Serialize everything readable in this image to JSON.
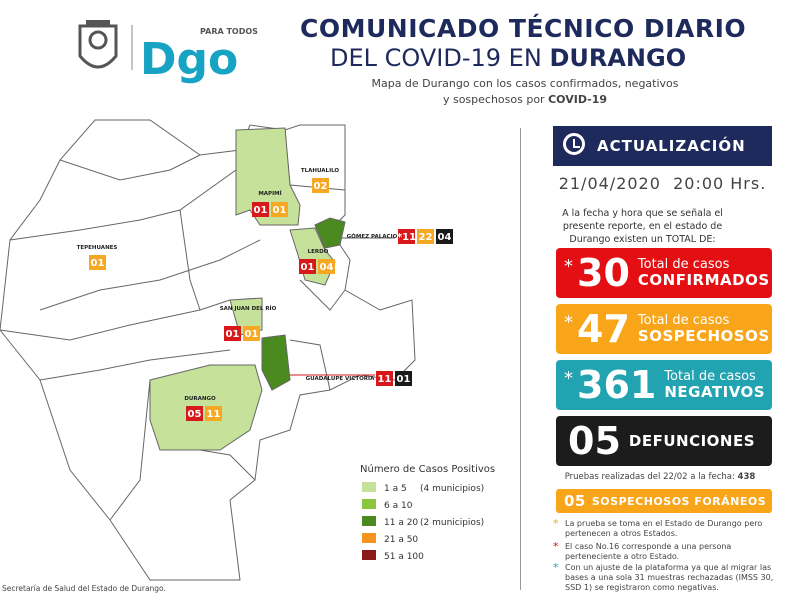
{
  "header": {
    "logo_tagline": "PARA TODOS",
    "logo_text": "Dgo",
    "title_line1": "COMUNICADO TÉCNICO DIARIO",
    "title_line2_prefix": "DEL COVID-19 EN",
    "title_line2_bold": "DURANGO",
    "subtitle_line1": "Mapa de Durango con los casos confirmados, negativos",
    "subtitle_line2_prefix": "y sospechosos por",
    "subtitle_line2_bold": "COVID-19"
  },
  "map": {
    "badge_colors": {
      "confirmados": "#d7191c",
      "sospechosos": "#f7a823",
      "defunciones": "#1a1a1a",
      "marker": "#d7191c"
    },
    "municipalities": [
      {
        "name": "MAPIMÍ",
        "badges": [
          {
            "text": "01",
            "kind": "confirmados"
          },
          {
            "text": "01",
            "kind": "sospechosos"
          }
        ]
      },
      {
        "name": "TLAHUALILO",
        "badges": [
          {
            "text": "02",
            "kind": "sospechosos"
          }
        ]
      },
      {
        "name": "TEPEHUANES",
        "badges": [
          {
            "text": "01",
            "kind": "sospechosos"
          }
        ]
      },
      {
        "name": "LERDO",
        "badges": [
          {
            "text": "01",
            "kind": "confirmados"
          },
          {
            "text": "04",
            "kind": "sospechosos"
          }
        ]
      },
      {
        "name": "GÓMEZ PALACIO",
        "badges": [
          {
            "text": "*11",
            "kind": "marker"
          },
          {
            "text": "22",
            "kind": "sospechosos"
          },
          {
            "text": "04",
            "kind": "defunciones"
          }
        ]
      },
      {
        "name": "SAN JUAN DEL RÍO",
        "badges": [
          {
            "text": "01",
            "kind": "confirmados"
          },
          {
            "text": "01",
            "kind": "sospechosos"
          }
        ]
      },
      {
        "name": "DURANGO",
        "badges": [
          {
            "text": "05",
            "kind": "confirmados"
          },
          {
            "text": "11",
            "kind": "sospechosos"
          }
        ]
      },
      {
        "name": "GUADALUPE VICTORIA",
        "badges": [
          {
            "text": "11",
            "kind": "confirmados"
          },
          {
            "text": "01",
            "kind": "defunciones"
          }
        ]
      }
    ],
    "legend": {
      "title": "Número de Casos Positivos",
      "items": [
        {
          "range": "1 a 5",
          "note": "(4 municipios)",
          "color": "#c6e29a"
        },
        {
          "range": "6 a 10",
          "color": "#8cc63f"
        },
        {
          "range": "11 a 20",
          "note": "(2 municipios)",
          "color": "#4b8a1e"
        },
        {
          "range": "21 a 50",
          "color": "#f7941d"
        },
        {
          "range": "51 a 100",
          "color": "#8b1a1a"
        }
      ]
    }
  },
  "panel": {
    "update_label": "ACTUALIZACIÓN",
    "date": "21/04/2020",
    "time": "20:00 Hrs.",
    "intro": "A la fecha y hora que se señala el presente reporte, en el estado de Durango existen un TOTAL DE:",
    "cards": [
      {
        "marker": "*",
        "number": "30",
        "line1": "Total de casos",
        "line2": "CONFIRMADOS",
        "color": "#e30f13"
      },
      {
        "marker": "*",
        "number": "47",
        "line1": "Total de casos",
        "line2": "SOSPECHOSOS",
        "color": "#f9a51a"
      },
      {
        "marker": "*",
        "number": "361",
        "line1": "Total de casos",
        "line2": "NEGATIVOS",
        "color": "#22a3b1"
      },
      {
        "number": "05",
        "line2": "DEFUNCIONES",
        "color": "#1c1c1c"
      }
    ],
    "tests_label": "Pruebas realizadas del 22/02 a la fecha:",
    "tests_value": "438",
    "foreign_number": "05",
    "foreign_label": "SOSPECHOSOS FORÁNEOS",
    "notes": [
      {
        "marker": "*",
        "color": "#f9a51a",
        "text": "La prueba se toma en el Estado de Durango pero pertenecen a otros Estados."
      },
      {
        "marker": "*",
        "color": "#e30f13",
        "text": "El caso No.16 corresponde a una persona perteneciente a otro Estado."
      },
      {
        "marker": "*",
        "color": "#22a3b1",
        "text": "Con un ajuste de la plataforma ya que al migrar las bases a una sola 31 muestras rechazadas (IMSS 30, SSD 1) se registraron como negativas."
      }
    ]
  },
  "footer": "Secretaría de Salud del Estado de Durango."
}
